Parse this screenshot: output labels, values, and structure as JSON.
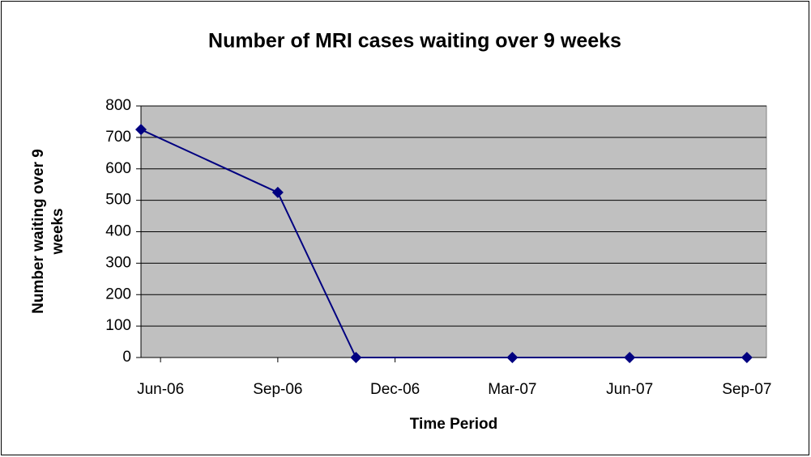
{
  "chart_data": {
    "type": "line",
    "title": "Number of MRI cases waiting over 9 weeks",
    "x_label": "Time Period",
    "y_label": [
      "Number waiting over 9",
      "weeks"
    ],
    "x": [
      -0.5,
      3,
      5,
      9,
      12,
      15
    ],
    "series": [
      {
        "name": "Number waiting over 9 weeks",
        "color": "#000080",
        "values": [
          725,
          525,
          0,
          0,
          0,
          0
        ]
      }
    ],
    "xlim": [
      -0.5,
      15.5
    ],
    "xticks": [
      {
        "value": 0,
        "label": "Jun-06"
      },
      {
        "value": 3,
        "label": "Sep-06"
      },
      {
        "value": 6,
        "label": "Dec-06"
      },
      {
        "value": 9,
        "label": "Mar-07"
      },
      {
        "value": 12,
        "label": "Jun-07"
      },
      {
        "value": 15,
        "label": "Sep-07"
      }
    ],
    "ylim": [
      0,
      800
    ],
    "yticks": [
      0,
      100,
      200,
      300,
      400,
      500,
      600,
      700,
      800
    ],
    "grid": true,
    "plot_background": "#c0c0c0"
  }
}
